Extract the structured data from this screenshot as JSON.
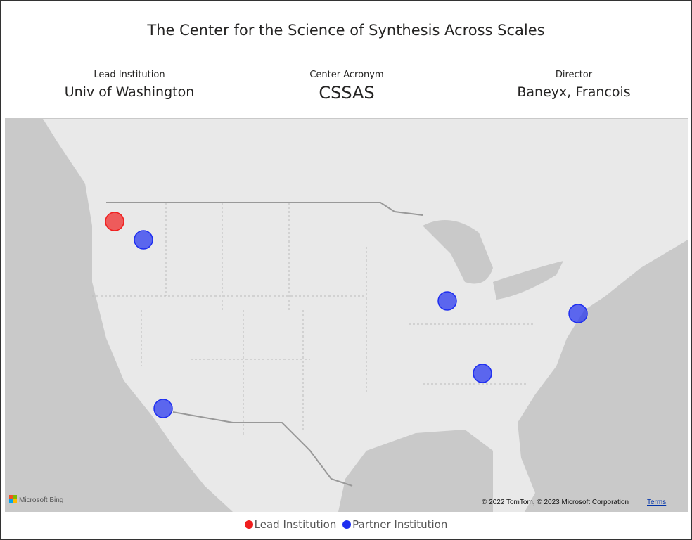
{
  "header": {
    "title": "The Center for the Science of Synthesis Across Scales"
  },
  "cards": [
    {
      "label": "Lead Institution",
      "value": "Univ of Washington"
    },
    {
      "label": "Center Acronym",
      "value": "CSSAS"
    },
    {
      "label": "Director",
      "value": "Baneyx, Francois"
    }
  ],
  "map": {
    "provider": "Microsoft Bing",
    "attribution": "© 2022 TomTom, © 2023 Microsoft Corporation",
    "terms": "Terms"
  },
  "legend": [
    {
      "name": "Lead Institution",
      "color": "#f01e1e"
    },
    {
      "name": "Partner Institution",
      "color": "#1e2ef0"
    }
  ]
}
